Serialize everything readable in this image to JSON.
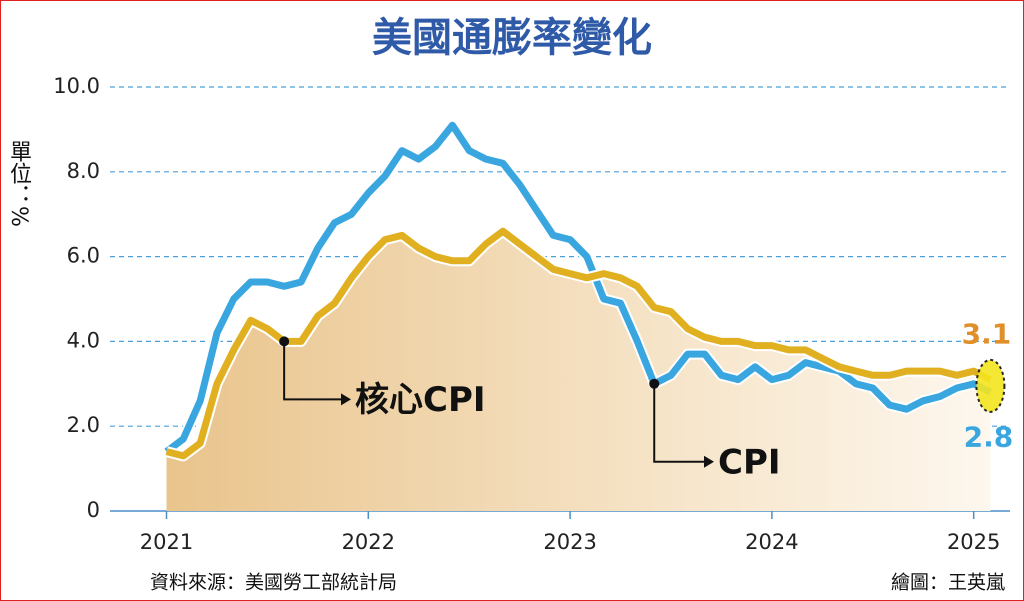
{
  "chart_data": {
    "type": "line",
    "title": "美國通膨率變化",
    "y_label": "單位：%",
    "source": "資料來源：美國勞工部統計局",
    "credit": "繪圖：王英嵐",
    "x": [
      2021,
      2021.083,
      2021.167,
      2021.25,
      2021.333,
      2021.417,
      2021.5,
      2021.583,
      2021.667,
      2021.75,
      2021.833,
      2021.917,
      2022,
      2022.083,
      2022.167,
      2022.25,
      2022.333,
      2022.417,
      2022.5,
      2022.583,
      2022.667,
      2022.75,
      2022.833,
      2022.917,
      2023,
      2023.083,
      2023.167,
      2023.25,
      2023.333,
      2023.417,
      2023.5,
      2023.583,
      2023.667,
      2023.75,
      2023.833,
      2023.917,
      2024,
      2024.083,
      2024.167,
      2024.25,
      2024.333,
      2024.417,
      2024.5,
      2024.583,
      2024.667,
      2024.75,
      2024.833,
      2024.917,
      2025,
      2025.083
    ],
    "xlim": [
      2020.72,
      2025.18
    ],
    "xticks": [
      2021,
      2022,
      2023,
      2024,
      2025
    ],
    "ylim": [
      0,
      10
    ],
    "yticks": [
      0,
      {
        "value": 2,
        "label": "2.0"
      },
      {
        "value": 4,
        "label": "4.0"
      },
      {
        "value": 6,
        "label": "6.0"
      },
      {
        "value": 8,
        "label": "8.0"
      },
      {
        "value": 10,
        "label": "10.0"
      }
    ],
    "grid": true,
    "series": [
      {
        "name": "CPI",
        "color": "#3aa6e0",
        "values": [
          1.4,
          1.7,
          2.6,
          4.2,
          5.0,
          5.4,
          5.4,
          5.3,
          5.4,
          6.2,
          6.8,
          7.0,
          7.5,
          7.9,
          8.5,
          8.3,
          8.6,
          9.1,
          8.5,
          8.3,
          8.2,
          7.7,
          7.1,
          6.5,
          6.4,
          6.0,
          5.0,
          4.9,
          4.0,
          3.0,
          3.2,
          3.7,
          3.7,
          3.2,
          3.1,
          3.4,
          3.1,
          3.2,
          3.5,
          3.4,
          3.3,
          3.0,
          2.9,
          2.5,
          2.4,
          2.6,
          2.7,
          2.9,
          3.0,
          2.8
        ]
      },
      {
        "name": "核心CPI",
        "color": "#e0b020",
        "values": [
          1.4,
          1.3,
          1.6,
          3.0,
          3.8,
          4.5,
          4.3,
          4.0,
          4.0,
          4.6,
          4.9,
          5.5,
          6.0,
          6.4,
          6.5,
          6.2,
          6.0,
          5.9,
          5.9,
          6.3,
          6.6,
          6.3,
          6.0,
          5.7,
          5.6,
          5.5,
          5.6,
          5.5,
          5.3,
          4.8,
          4.7,
          4.3,
          4.1,
          4.0,
          4.0,
          3.9,
          3.9,
          3.8,
          3.8,
          3.6,
          3.4,
          3.3,
          3.2,
          3.2,
          3.3,
          3.3,
          3.3,
          3.2,
          3.3,
          3.1
        ]
      }
    ]
  }
}
